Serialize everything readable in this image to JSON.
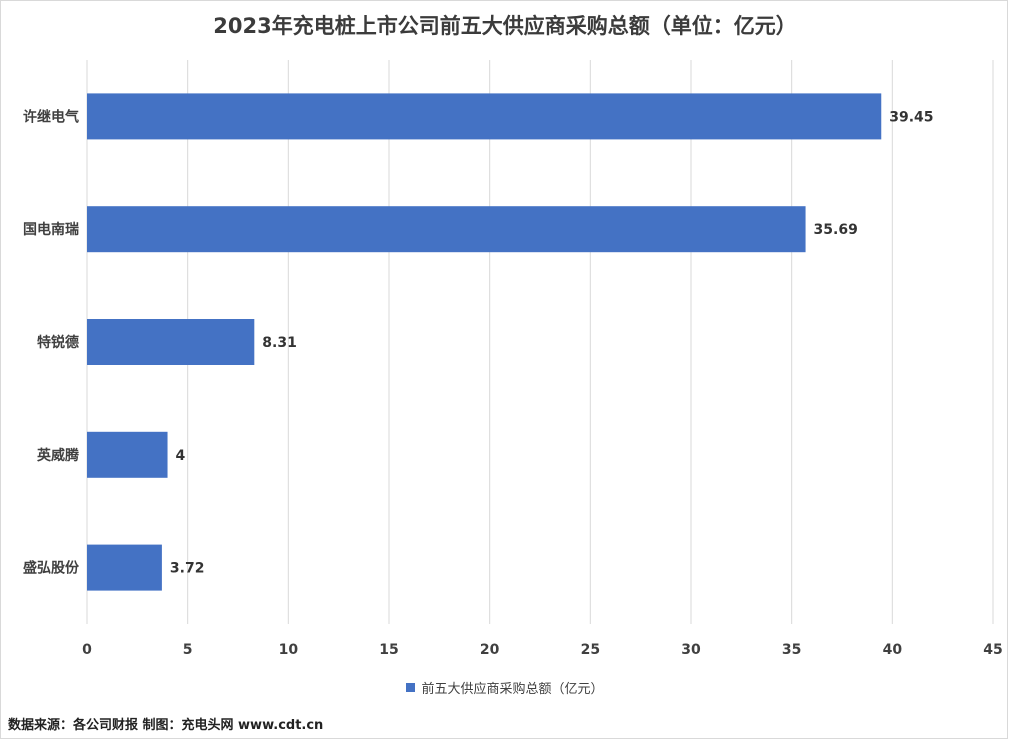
{
  "title": "2023年充电桩上市公司前五大供应商采购总额（单位：亿元）",
  "source_note": "数据来源：各公司财报  制图：充电头网 www.cdt.cn",
  "colors": {
    "bar": "#4472c4",
    "grid": "#d9d9d9",
    "text": "#404040"
  },
  "chart_data": {
    "type": "bar",
    "orientation": "horizontal",
    "title": "2023年充电桩上市公司前五大供应商采购总额（单位：亿元）",
    "categories": [
      "许继电气",
      "国电南瑞",
      "特锐德",
      "英威腾",
      "盛弘股份"
    ],
    "series": [
      {
        "name": "前五大供应商采购总额（亿元）",
        "values": [
          39.45,
          35.69,
          8.31,
          4,
          3.72
        ]
      }
    ],
    "data_labels": [
      "39.45",
      "35.69",
      "8.31",
      "4",
      "3.72"
    ],
    "xlim": [
      0,
      45
    ],
    "xticks": [
      "0",
      "5",
      "10",
      "15",
      "20",
      "25",
      "30",
      "35",
      "40",
      "45"
    ],
    "grid": true,
    "legend_position": "bottom"
  }
}
